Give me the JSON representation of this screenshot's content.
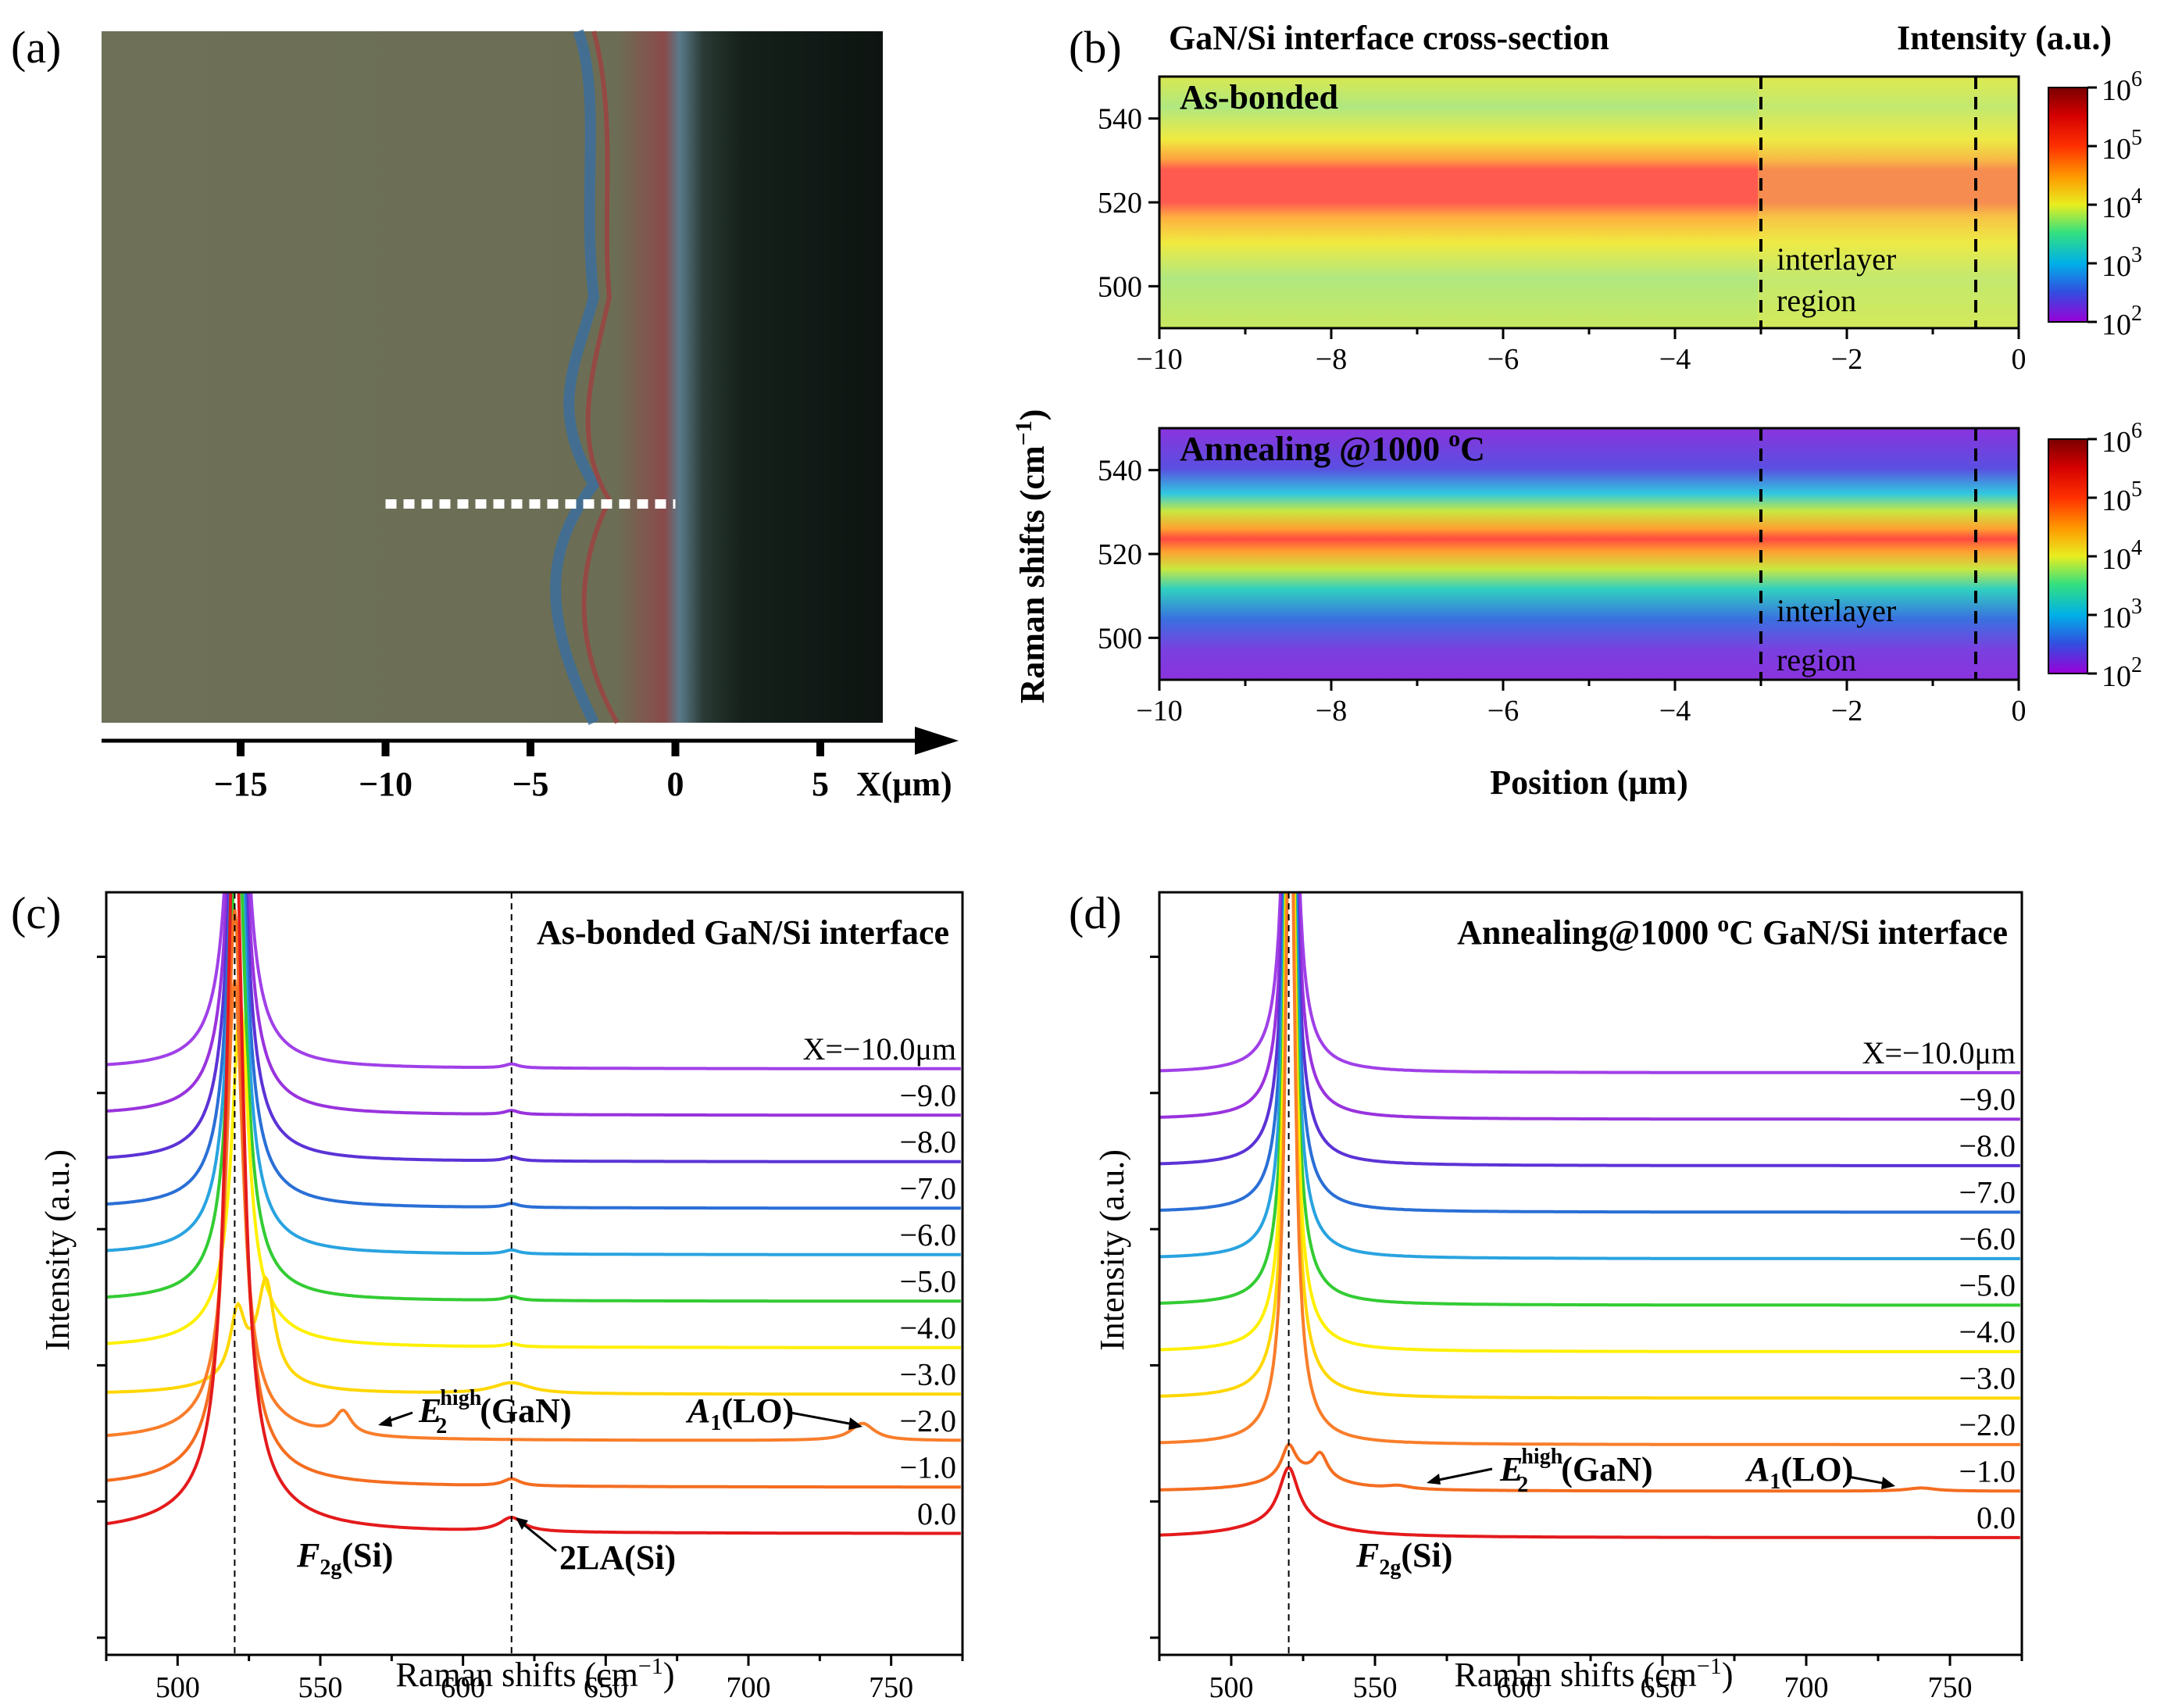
{
  "panel_labels": [
    "(a)",
    "(b)",
    "(c)",
    "(d)"
  ],
  "colors": {
    "spectra": [
      "#e41a1c",
      "#f46d20",
      "#f97d2a",
      "#ffd700",
      "#fff000",
      "#33cc33",
      "#29a3e0",
      "#2a6fd6",
      "#5b33d6",
      "#9933dd",
      "#a040e8"
    ],
    "photo_bg": "#6e7158",
    "photo_dark": "#15201a"
  },
  "chart_data": [
    {
      "id": "a",
      "type": "image",
      "description_axis": {
        "xlabel": "X(μm)",
        "ticks": [
          -15,
          -10,
          -5,
          0,
          5
        ],
        "tick_labels": [
          "−15",
          "−10",
          "−5",
          "0",
          "5"
        ],
        "scan_line": [
          -10,
          0
        ]
      }
    },
    {
      "id": "b",
      "type": "heatmap",
      "title": "GaN/Si interface cross-section",
      "colorbar_title": "Intensity (a.u.)",
      "xlabel": "Position (μm)",
      "ylabel": "Raman shifts (cm",
      "ylabel_sup": "−1",
      "ylabel_close": ")",
      "xlim": [
        -10,
        0
      ],
      "ylim": [
        490,
        550
      ],
      "xticks": [
        -10,
        -8,
        -6,
        -4,
        -2,
        0
      ],
      "xtick_labels": [
        "−10",
        "−8",
        "−6",
        "−4",
        "−2",
        "0"
      ],
      "yticks": [
        500,
        520,
        540
      ],
      "ytick_labels": [
        "500",
        "520",
        "540"
      ],
      "colorbar_ticks": [
        "10",
        "10",
        "10",
        "10",
        "10"
      ],
      "colorbar_exponents": [
        "6",
        "5",
        "4",
        "3",
        "2"
      ],
      "interlayer_lines": [
        -3,
        -0.5
      ],
      "annotation_line1": "interlayer",
      "annotation_line2": "region",
      "maps": [
        {
          "label": "As-bonded",
          "peak": 520,
          "background": "#e8ea40"
        },
        {
          "label": "Annealing @1000 ",
          "label_sup": "o",
          "label_end": "C",
          "peak": 520,
          "background": "#8a33dd"
        }
      ]
    },
    {
      "id": "c",
      "type": "line",
      "title": "As-bonded GaN/Si interface",
      "xlabel": "Raman shifts (cm",
      "xlabel_sup": "−1",
      "xlabel_close": ")",
      "ylabel": "Intensity (a.u.)",
      "xlim": [
        475,
        775
      ],
      "xticks": [
        500,
        550,
        600,
        650,
        700,
        750
      ],
      "xtick_labels": [
        "500",
        "550",
        "600",
        "650",
        "700",
        "750"
      ],
      "ref_lines": [
        520,
        617
      ],
      "series_labels": [
        "X=−10.0μm",
        "−9.0",
        "−8.0",
        "−7.0",
        "−6.0",
        "−5.0",
        "−4.0",
        "−3.0",
        "−2.0",
        "−1.0",
        "0.0"
      ],
      "positions": [
        -10,
        -9,
        -8,
        -7,
        -6,
        -5,
        -4,
        -3,
        -2,
        -1,
        0
      ],
      "annotations": {
        "e2_main": "E",
        "e2_sub": "2",
        "e2_sup": "high",
        "e2_tail": "(GaN)",
        "a1_main": "A",
        "a1_sub": "1",
        "a1_tail": "(LO)",
        "f2g_main": "F",
        "f2g_sub": "2g",
        "f2g_tail": "(Si)",
        "la": "2LA(Si)"
      }
    },
    {
      "id": "d",
      "type": "line",
      "title_pre": "Annealing@1000 ",
      "title_sup": "o",
      "title_post": "C GaN/Si interface",
      "xlabel": "Raman shifts (cm",
      "xlabel_sup": "−1",
      "xlabel_close": ")",
      "ylabel": "Intensity (a.u.)",
      "xlim": [
        475,
        775
      ],
      "xticks": [
        500,
        550,
        600,
        650,
        700,
        750
      ],
      "xtick_labels": [
        "500",
        "550",
        "600",
        "650",
        "700",
        "750"
      ],
      "ref_lines": [
        520
      ],
      "series_labels": [
        "X=−10.0μm",
        "−9.0",
        "−8.0",
        "−7.0",
        "−6.0",
        "−5.0",
        "−4.0",
        "−3.0",
        "−2.0",
        "−1.0",
        "0.0"
      ],
      "positions": [
        -10,
        -9,
        -8,
        -7,
        -6,
        -5,
        -4,
        -3,
        -2,
        -1,
        0
      ],
      "annotations": {
        "e2_main": "E",
        "e2_sub": "2",
        "e2_sup": "high",
        "e2_tail": "(GaN)",
        "a1_main": "A",
        "a1_sub": "1",
        "a1_tail": "(LO)",
        "f2g_main": "F",
        "f2g_sub": "2g",
        "f2g_tail": "(Si)"
      }
    }
  ]
}
